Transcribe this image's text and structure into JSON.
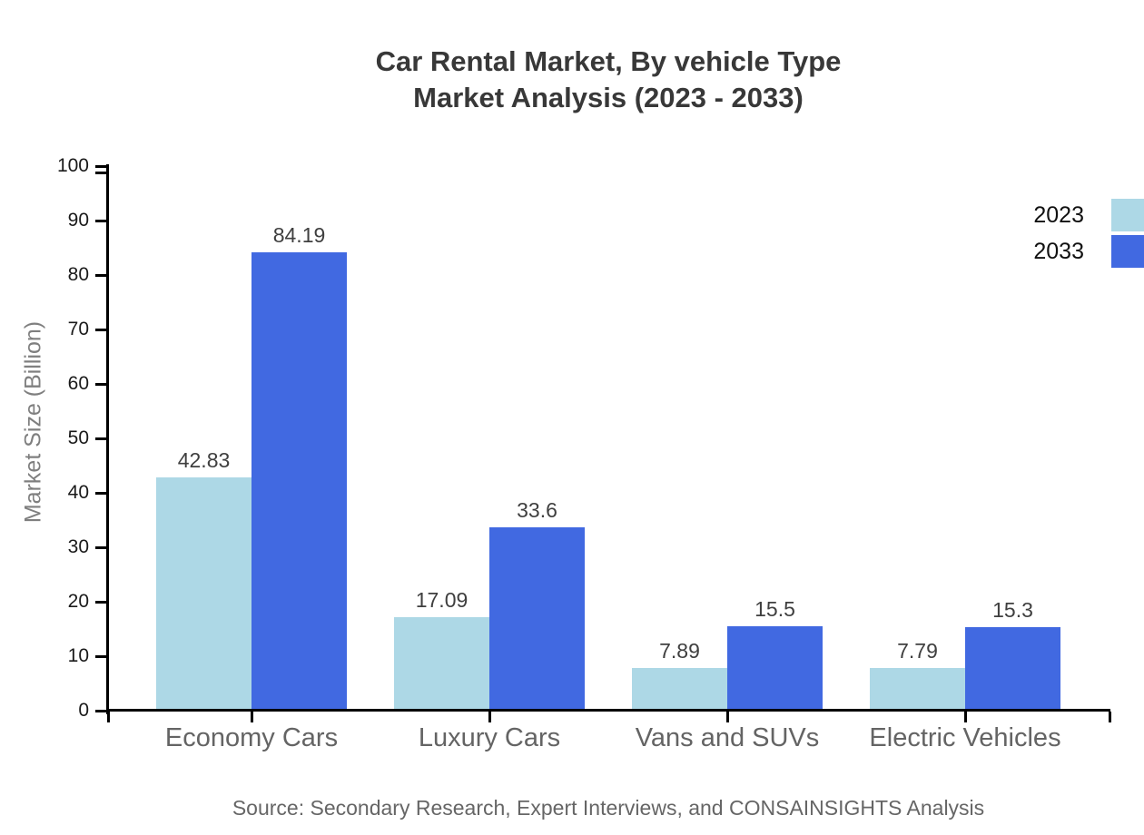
{
  "chart_data": {
    "type": "bar",
    "title_lines": [
      "Car Rental Market, By vehicle Type",
      "Market Analysis (2023 - 2033)"
    ],
    "categories": [
      "Economy Cars",
      "Luxury Cars",
      "Vans and SUVs",
      "Electric Vehicles"
    ],
    "series": [
      {
        "name": "2023",
        "color": "#ADD8E6",
        "values": [
          42.83,
          17.09,
          7.89,
          7.79
        ]
      },
      {
        "name": "2033",
        "color": "#4169E1",
        "values": [
          84.19,
          33.6,
          15.5,
          15.3
        ]
      }
    ],
    "value_labels": [
      "42.83",
      "84.19",
      "17.09",
      "33.6",
      "7.89",
      "15.5",
      "7.79",
      "15.3"
    ],
    "xlabel": "",
    "ylabel": "Market Size (Billion)",
    "ylim": [
      0,
      100
    ],
    "yticks": [
      0,
      10,
      20,
      30,
      40,
      50,
      60,
      70,
      80,
      90,
      100
    ],
    "grid": false,
    "legend_position": "top-right",
    "bar_label_color": "#3f3f3f",
    "axis_color": "#000000",
    "source": "Source: Secondary Research, Expert Interviews, and CONSAINSIGHTS Analysis"
  }
}
